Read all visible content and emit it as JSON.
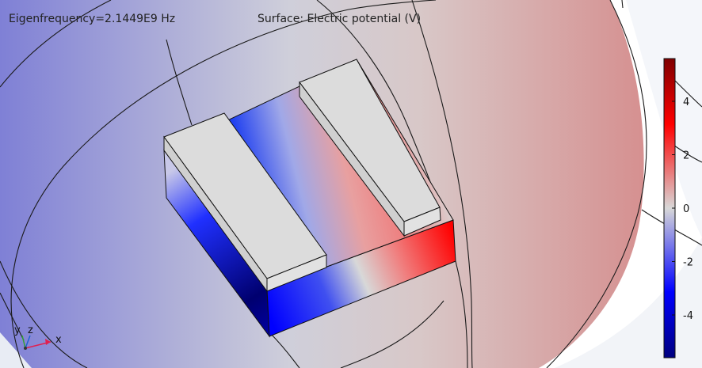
{
  "header": {
    "eigenfrequency": "Eigenfrequency=2.1449E9 Hz",
    "surface": "Surface: Electric potential (V)"
  },
  "colorbar": {
    "min": -5.6,
    "max": 5.6,
    "ticks": [
      {
        "value": 4,
        "label": "4"
      },
      {
        "value": 2,
        "label": "2"
      },
      {
        "value": 0,
        "label": "0"
      },
      {
        "value": -2,
        "label": "-2"
      },
      {
        "value": -4,
        "label": "-4"
      }
    ],
    "colors": [
      "#00007f",
      "#0000ff",
      "#d8d8d8",
      "#ff0000",
      "#7f0000"
    ]
  },
  "axes": {
    "x": "x",
    "y": "y",
    "z": "z",
    "colors": {
      "x": "#e02050",
      "y": "#30a030",
      "z": "#2060d0"
    }
  }
}
